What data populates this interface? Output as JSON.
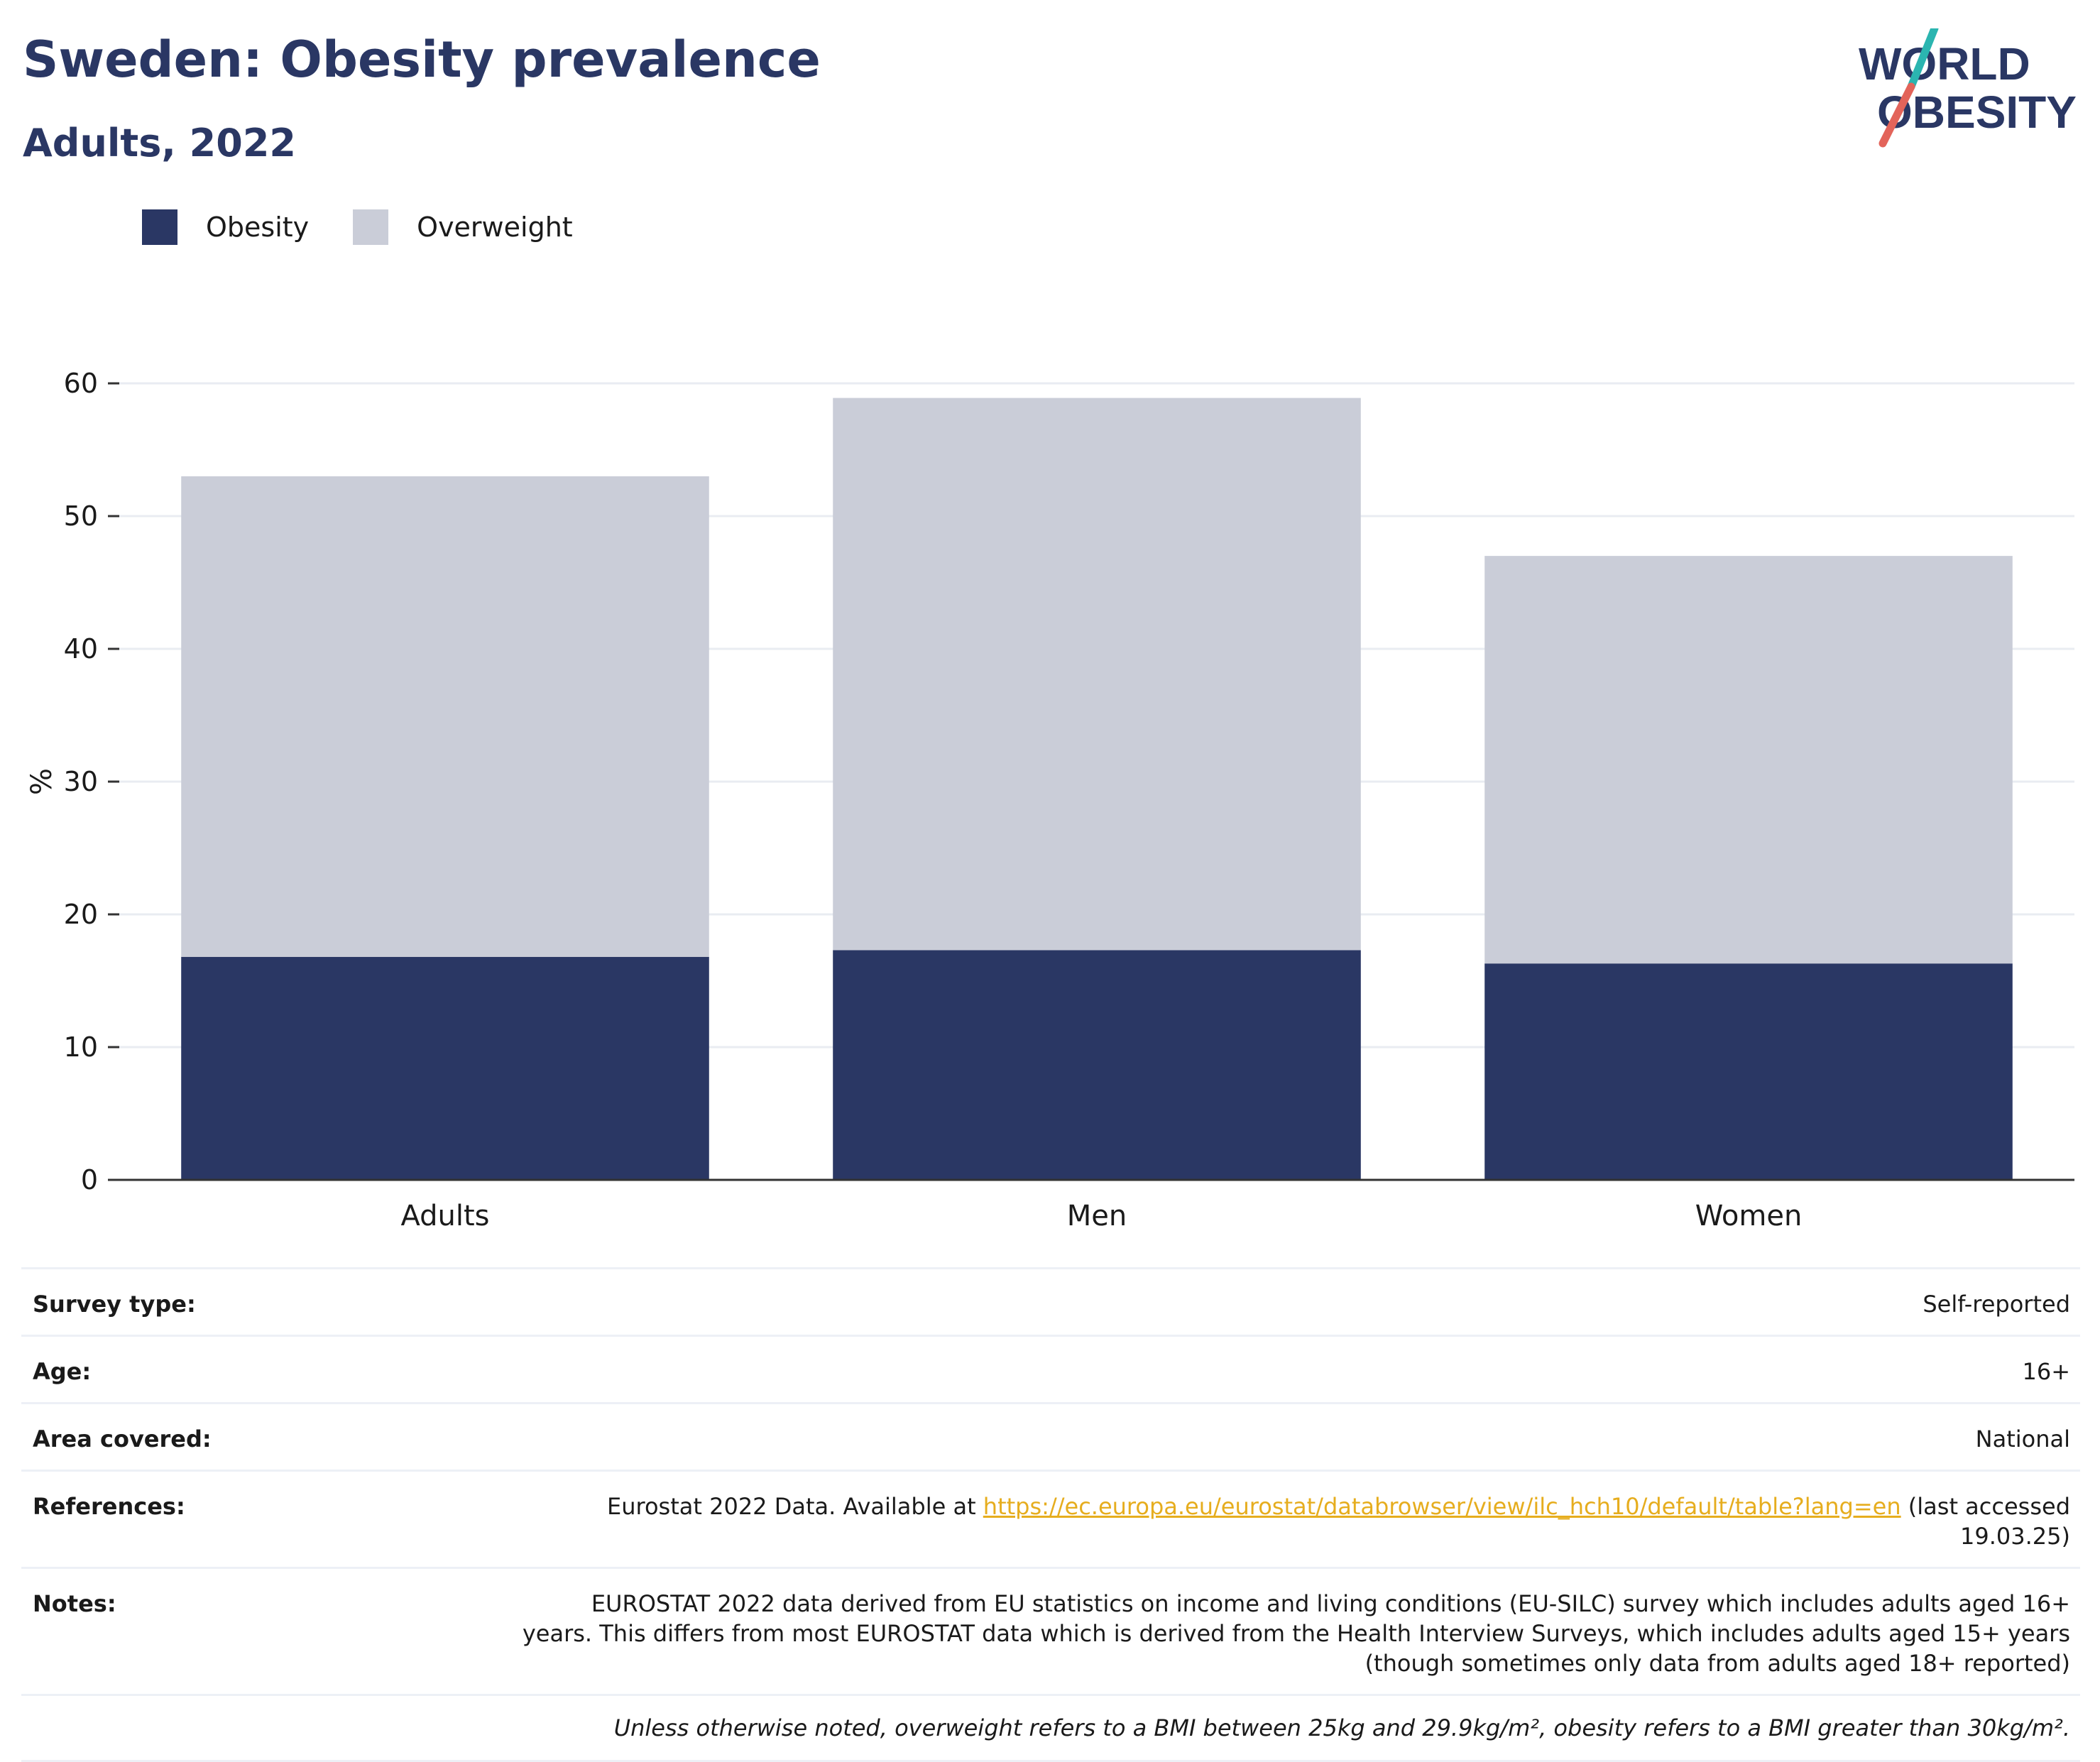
{
  "header": {
    "title": "Sweden: Obesity prevalence",
    "subtitle": "Adults, 2022"
  },
  "logo": {
    "line1": "WORLD",
    "line2": "OBESITY",
    "colors": {
      "text": "#2a3764",
      "slash_top": "#2bb5b0",
      "slash_bottom": "#e3645a"
    }
  },
  "colors": {
    "obesity": "#2a3764",
    "overweight": "#cacdd8",
    "grid": "#e9ecf2",
    "axis": "#333333",
    "link": "#e6ad1e"
  },
  "legend": [
    {
      "label": "Obesity",
      "color": "#2a3764"
    },
    {
      "label": "Overweight",
      "color": "#cacdd8"
    }
  ],
  "chart_data": {
    "type": "bar",
    "stacked": true,
    "categories": [
      "Adults",
      "Men",
      "Women"
    ],
    "series": [
      {
        "name": "Obesity",
        "values": [
          16.8,
          17.3,
          16.3
        ]
      },
      {
        "name": "Overweight",
        "values": [
          36.2,
          41.6,
          30.7
        ]
      }
    ],
    "totals": [
      53.0,
      58.9,
      47.0
    ],
    "ylabel": "%",
    "xlabel": "",
    "ylim": [
      0,
      60
    ],
    "yticks": [
      0,
      10,
      20,
      30,
      40,
      50,
      60
    ],
    "grid": true,
    "legend_position": "top-left"
  },
  "info": {
    "survey_type": {
      "label": "Survey type:",
      "value": "Self-reported"
    },
    "age": {
      "label": "Age:",
      "value": "16+"
    },
    "area": {
      "label": "Area covered:",
      "value": "National"
    },
    "references": {
      "label": "References:",
      "prefix": "Eurostat 2022 Data. Available at ",
      "link": "https://ec.europa.eu/eurostat/databrowser/view/ilc_hch10/default/table?lang=en",
      "suffix_line1": " (last accessed",
      "suffix_line2": "19.03.25)"
    },
    "notes": {
      "label": "Notes:",
      "line1": "EUROSTAT 2022 data derived from EU statistics on income and living conditions (EU-SILC) survey which includes adults aged 16+",
      "line2": "years. This differs from most EUROSTAT data which is derived from the Health Interview Surveys, which includes adults aged 15+ years",
      "line3": "(though sometimes only data from adults aged 18+ reported)"
    },
    "footnote": "Unless otherwise noted, overweight refers to a BMI between 25kg and 29.9kg/m², obesity refers to a BMI greater than 30kg/m²."
  }
}
